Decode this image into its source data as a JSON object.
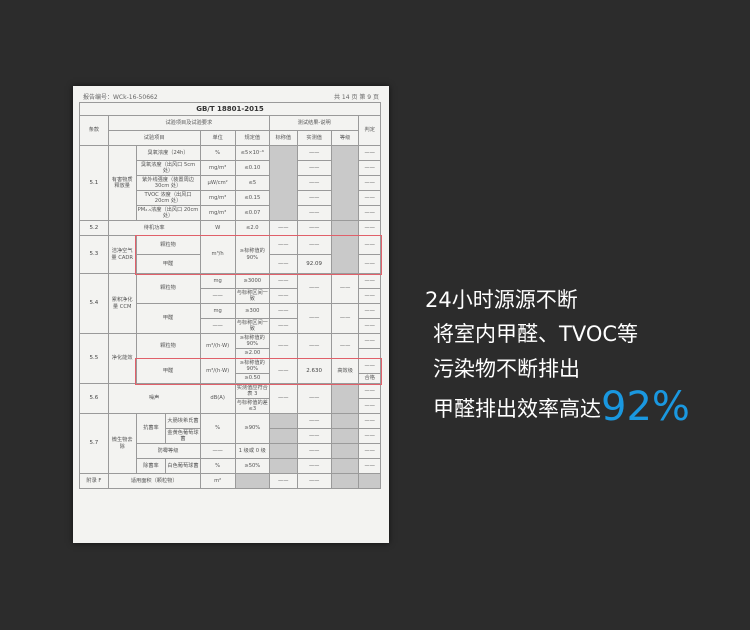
{
  "document": {
    "report_no": "报告编号：WCk-16-50662",
    "page_info": "共 14 页  第 9 页",
    "title": "GB/T 18801-2015",
    "dash": "——",
    "headers": {
      "clause": "条款",
      "group1": "试验项目及试验要求",
      "group2": "测试结果-说明",
      "item": "试验项目",
      "unit": "单位",
      "limit": "规定值",
      "nominal": "标称值",
      "measured": "实测值",
      "grade": "等级",
      "verdict": "判定"
    },
    "r51": {
      "clause": "5.1",
      "category": "有害物质释放量",
      "items": [
        {
          "name": "臭氧浓度（24h）",
          "unit": "%",
          "limit": "≤5×10⁻⁶"
        },
        {
          "name": "臭氧浓度（出风口 5cm 处）",
          "unit": "mg/m³",
          "limit": "≤0.10"
        },
        {
          "name": "紫外线强度（装置周边 30cm 处）",
          "unit": "μW/cm²",
          "limit": "≤5"
        },
        {
          "name": "TVOC 浓度（出风口 20cm 处）",
          "unit": "mg/m³",
          "limit": "≤0.15"
        },
        {
          "name": "PM₂.₅浓度（出风口 20cm 处）",
          "unit": "mg/m³",
          "limit": "≤0.07"
        }
      ]
    },
    "r52": {
      "clause": "5.2",
      "item": "待机功率",
      "unit": "W",
      "limit": "≤2.0"
    },
    "r53": {
      "clause": "5.3",
      "category": "洁净空气量 CADR",
      "item1": "颗粒物",
      "item2": "甲醛",
      "unit": "m³/h",
      "limit": "≥标称值的 90%",
      "measured2": "92.09"
    },
    "r54": {
      "clause": "5.4",
      "category": "累积净化量 CCM",
      "item1": "颗粒物",
      "item2": "甲醛",
      "unit1": "mg",
      "limit1": "≥3000",
      "limit1b": "与标称区间一致",
      "unit2": "mg",
      "limit2": "≥300",
      "limit2b": "与标称区间一致"
    },
    "r55": {
      "clause": "5.5",
      "category": "净化能效",
      "item1": "颗粒物",
      "item2": "甲醛",
      "unit": "m³/(h·W)",
      "limit1": "≥标称值的 90%",
      "limit1b": "≥2.00",
      "limit2": "≥标称值的 90%",
      "limit2b": "≥0.50",
      "measured2": "2.630",
      "grade2": "高效级",
      "verdict2": "合格"
    },
    "r56": {
      "clause": "5.6",
      "item": "噪声",
      "unit": "dB(A)",
      "limit1": "实测值应符合表 3",
      "limit2": "与标称值的差≤3"
    },
    "r57": {
      "clause": "5.7",
      "category": "微生物去除",
      "antibac": "抗菌率",
      "bac1": "大肠埃希氏菌",
      "bac2": "金黄色葡萄球菌",
      "unit": "%",
      "limit1": "≥90%",
      "mold": "防霉等级",
      "limit2": "1 级或 0 级",
      "removal": "除菌率",
      "bac3": "白色葡萄球菌",
      "limit3": "≥50%"
    },
    "rF": {
      "clause": "附录 F",
      "item": "适用面积（颗粒物）",
      "unit": "m²"
    }
  },
  "promo": {
    "line1": "24小时源源不断",
    "line2": "将室内甲醛、TVOC等",
    "line3": "污染物不断排出",
    "line4": "甲醛排出效率高达",
    "highlight": "92%",
    "highlight_color": "#1a98e0"
  }
}
